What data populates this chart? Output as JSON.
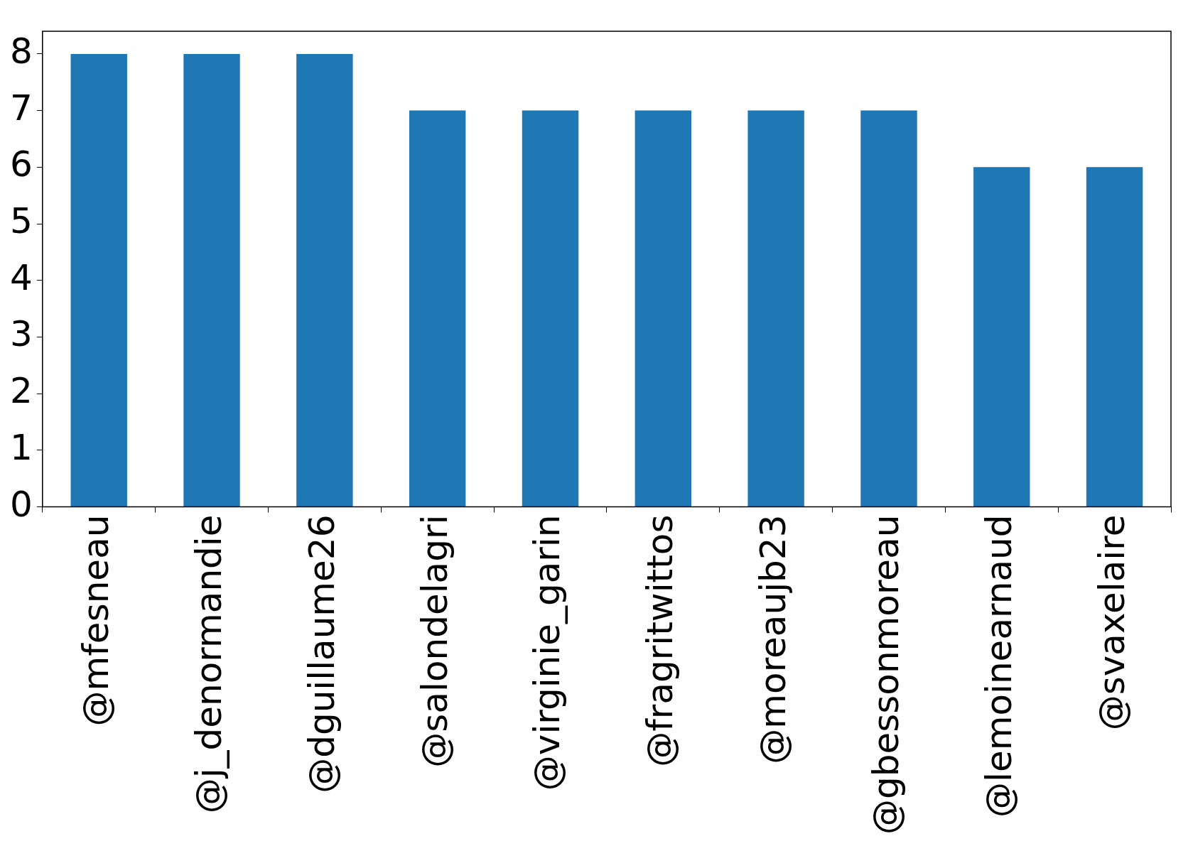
{
  "chart_data": {
    "type": "bar",
    "categories": [
      "@mfesneau",
      "@j_denormandie",
      "@dguillaume26",
      "@salondelagri",
      "@virginie_garin",
      "@fragritwittos",
      "@moreaujb23",
      "@gbessonmoreau",
      "@lemoinearnaud",
      "@svaxelaire"
    ],
    "values": [
      8,
      8,
      8,
      7,
      7,
      7,
      7,
      7,
      6,
      6
    ],
    "color": "#1f77b4",
    "ylim": [
      0,
      8.4
    ],
    "yticks": [
      0,
      1,
      2,
      3,
      4,
      5,
      6,
      7,
      8
    ],
    "grid": false,
    "legend": false
  }
}
